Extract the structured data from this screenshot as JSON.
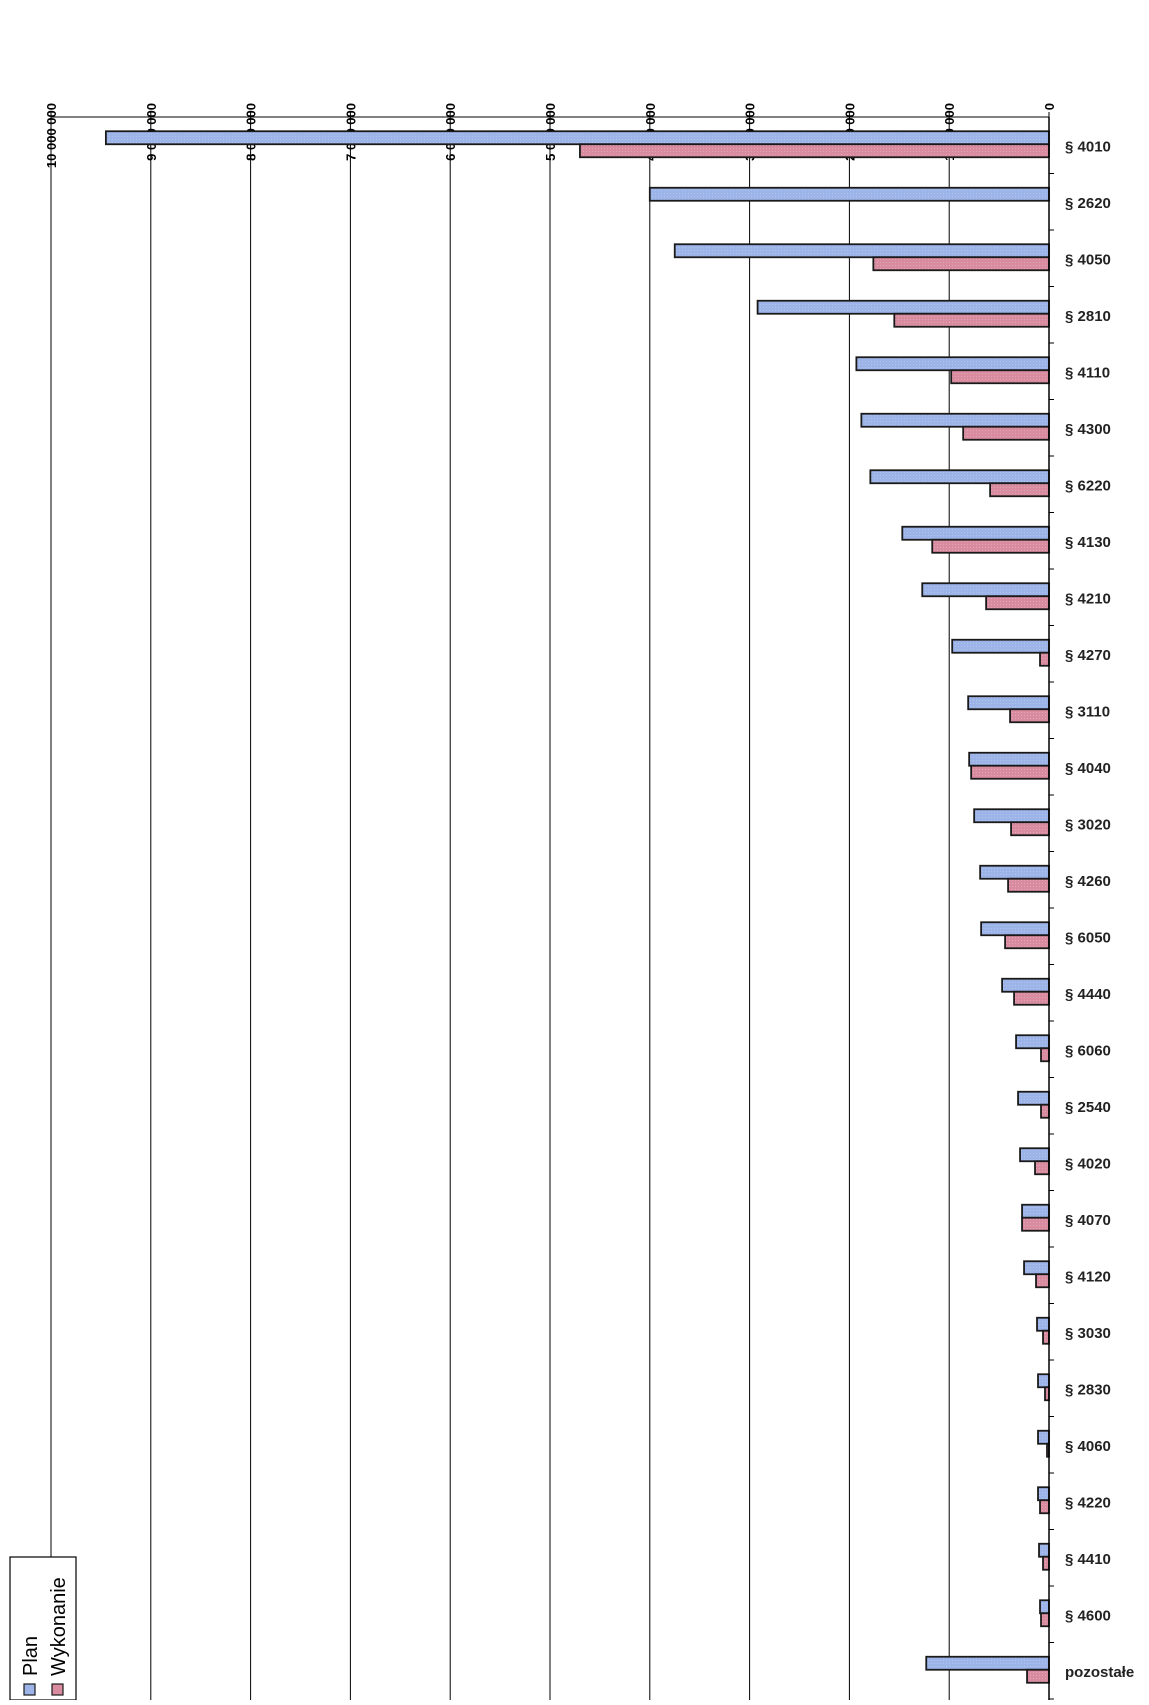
{
  "chart_data": {
    "type": "bar",
    "orientation": "horizontal",
    "value_axis_position": "top",
    "value_axis_direction": "right-to-left",
    "grid": true,
    "legend_position": "bottom-left",
    "xlim": [
      0,
      10000000
    ],
    "ticks": [
      0,
      1000000,
      2000000,
      3000000,
      4000000,
      5000000,
      6000000,
      7000000,
      8000000,
      9000000,
      10000000
    ],
    "tick_labels": [
      "0",
      "1 000 000",
      "2 000 000",
      "3 000 000",
      "4 000 000",
      "5 000 000",
      "6 000 000",
      "7 000 000",
      "8 000 000",
      "9 000 000",
      "10 000 000"
    ],
    "categories": [
      "§ 4010",
      "§ 2620",
      "§ 4050",
      "§ 2810",
      "§ 4110",
      "§ 4300",
      "§ 6220",
      "§ 4130",
      "§ 4210",
      "§ 4270",
      "§ 3110",
      "§ 4040",
      "§ 3020",
      "§ 4260",
      "§ 6050",
      "§ 4440",
      "§ 6060",
      "§ 2540",
      "§ 4020",
      "§ 4070",
      "§ 4120",
      "§ 3030",
      "§ 2830",
      "§ 4060",
      "§ 4220",
      "§ 4410",
      "§ 4600",
      "pozostałe"
    ],
    "series": [
      {
        "name": "Plan",
        "color": "#9db4e8",
        "values": [
          9450000,
          4000000,
          3750000,
          2920000,
          1930000,
          1880000,
          1790000,
          1470000,
          1270000,
          970000,
          810000,
          800000,
          750000,
          690000,
          680000,
          470000,
          330000,
          310000,
          290000,
          270000,
          250000,
          120000,
          110000,
          110000,
          110000,
          100000,
          90000,
          1230000
        ]
      },
      {
        "name": "Wykonanie",
        "color": "#d98ca0",
        "values": [
          4700000,
          0,
          1760000,
          1550000,
          980000,
          860000,
          590000,
          1170000,
          630000,
          90000,
          390000,
          780000,
          380000,
          410000,
          440000,
          350000,
          80000,
          80000,
          140000,
          270000,
          130000,
          60000,
          40000,
          20000,
          90000,
          60000,
          80000,
          220000
        ]
      }
    ]
  }
}
